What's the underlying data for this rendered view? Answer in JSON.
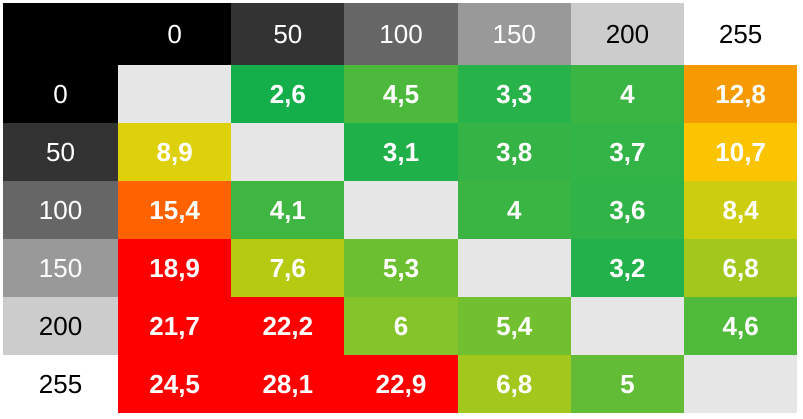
{
  "table": {
    "columns": [
      {
        "text": "0",
        "color": "#000000",
        "text_color": "#ffffff"
      },
      {
        "text": "50",
        "color": "#333333",
        "text_color": "#ffffff"
      },
      {
        "text": "100",
        "color": "#666666",
        "text_color": "#ffffff"
      },
      {
        "text": "150",
        "color": "#999999",
        "text_color": "#ffffff"
      },
      {
        "text": "200",
        "color": "#cccccc",
        "text_color": "#000000"
      },
      {
        "text": "255",
        "color": "#ffffff",
        "text_color": "#000000"
      }
    ],
    "rows": [
      {
        "label": {
          "text": "0",
          "color": "#000000",
          "text_color": "#ffffff"
        },
        "cells": [
          null,
          {
            "text": "2,6",
            "color": "#14ae4b"
          },
          {
            "text": "4,5",
            "color": "#4db93c"
          },
          {
            "text": "3,3",
            "color": "#28b24a"
          },
          {
            "text": "4",
            "color": "#3ab543"
          },
          {
            "text": "12,8",
            "color": "#f59a00"
          }
        ]
      },
      {
        "label": {
          "text": "50",
          "color": "#333333",
          "text_color": "#ffffff"
        },
        "cells": [
          {
            "text": "8,9",
            "color": "#dcd10a"
          },
          null,
          {
            "text": "3,1",
            "color": "#20b04a"
          },
          {
            "text": "3,8",
            "color": "#35b445"
          },
          {
            "text": "3,7",
            "color": "#32b447"
          },
          {
            "text": "10,7",
            "color": "#fbc400"
          }
        ]
      },
      {
        "label": {
          "text": "100",
          "color": "#666666",
          "text_color": "#ffffff"
        },
        "cells": [
          {
            "text": "15,4",
            "color": "#ff6200"
          },
          {
            "text": "4,1",
            "color": "#3eb641"
          },
          null,
          {
            "text": "4",
            "color": "#3ab543"
          },
          {
            "text": "3,6",
            "color": "#30b347"
          },
          {
            "text": "8,4",
            "color": "#cdcd10"
          }
        ]
      },
      {
        "label": {
          "text": "150",
          "color": "#999999",
          "text_color": "#ffffff"
        },
        "cells": [
          {
            "text": "18,9",
            "color": "#ff0000"
          },
          {
            "text": "7,6",
            "color": "#b5cb12"
          },
          {
            "text": "5,3",
            "color": "#6dbf32"
          },
          null,
          {
            "text": "3,2",
            "color": "#22b14a"
          },
          {
            "text": "6,8",
            "color": "#a2c81e"
          }
        ]
      },
      {
        "label": {
          "text": "200",
          "color": "#cccccc",
          "text_color": "#000000"
        },
        "cells": [
          {
            "text": "21,7",
            "color": "#ff0000"
          },
          {
            "text": "22,2",
            "color": "#ff0000"
          },
          {
            "text": "6",
            "color": "#84c42a"
          },
          {
            "text": "5,4",
            "color": "#72c030"
          },
          null,
          {
            "text": "4,6",
            "color": "#50ba3b"
          }
        ]
      },
      {
        "label": {
          "text": "255",
          "color": "#ffffff",
          "text_color": "#000000"
        },
        "cells": [
          {
            "text": "24,5",
            "color": "#ff0000"
          },
          {
            "text": "28,1",
            "color": "#ff0000"
          },
          {
            "text": "22,9",
            "color": "#ff0000"
          },
          {
            "text": "6,8",
            "color": "#a2c81e"
          },
          {
            "text": "5",
            "color": "#62bc36"
          },
          null
        ]
      }
    ],
    "corner_color": "#000000",
    "empty_color": "#e6e6e6"
  }
}
